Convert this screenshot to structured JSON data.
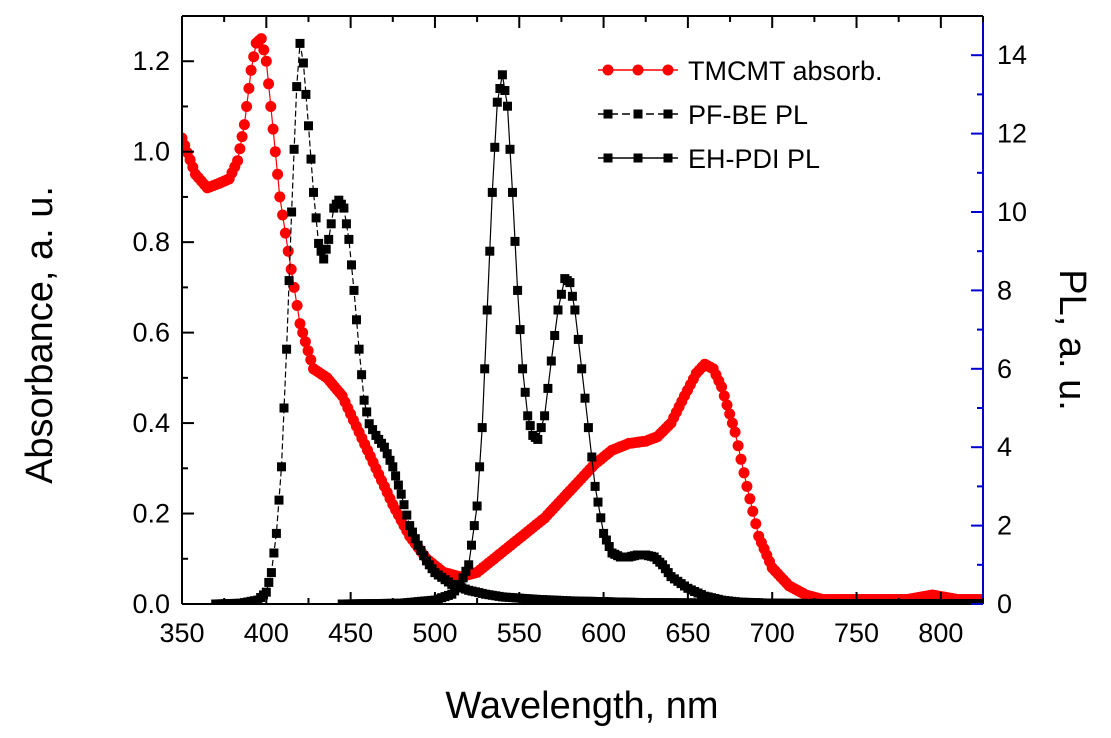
{
  "chart_data": {
    "type": "scatter",
    "xlabel": "Wavelength, nm",
    "ylabel": "Absorbance, a. u.",
    "y2label": "PL, a. u.",
    "xlim": [
      350,
      825
    ],
    "ylim": [
      0,
      1.3
    ],
    "y2lim": [
      0,
      15
    ],
    "x_ticks": [
      "350",
      "400",
      "450",
      "500",
      "550",
      "600",
      "650",
      "700",
      "750",
      "800"
    ],
    "y_ticks": [
      "0.0",
      "0.2",
      "0.4",
      "0.6",
      "0.8",
      "1.0",
      "1.2"
    ],
    "y2_ticks": [
      "0",
      "2",
      "4",
      "6",
      "8",
      "10",
      "12",
      "14"
    ],
    "grid": false,
    "legend_position": "top-right",
    "colors": {
      "absorb": "#ff0000",
      "pl": "#000000",
      "right_axis": "#0000cc"
    },
    "series": [
      {
        "name": "TMCMT absorb.",
        "axis": "left",
        "marker": "circle",
        "line": "solid",
        "x": [
          350,
          358,
          365,
          372,
          378,
          383,
          387,
          391,
          394,
          397,
          400,
          404,
          408,
          413,
          420,
          428,
          436,
          445,
          455,
          465,
          475,
          485,
          495,
          505,
          515,
          525,
          535,
          545,
          555,
          565,
          575,
          585,
          595,
          605,
          615,
          625,
          632,
          640,
          648,
          655,
          660,
          665,
          670,
          678,
          685,
          692,
          700,
          710,
          720,
          730,
          740,
          760,
          780,
          795,
          810,
          825
        ],
        "y": [
          1.03,
          0.95,
          0.92,
          0.93,
          0.94,
          0.98,
          1.06,
          1.18,
          1.24,
          1.25,
          1.2,
          1.05,
          0.9,
          0.78,
          0.62,
          0.52,
          0.5,
          0.46,
          0.38,
          0.3,
          0.22,
          0.15,
          0.1,
          0.07,
          0.06,
          0.07,
          0.1,
          0.13,
          0.16,
          0.19,
          0.23,
          0.27,
          0.31,
          0.34,
          0.355,
          0.36,
          0.37,
          0.4,
          0.46,
          0.51,
          0.53,
          0.52,
          0.48,
          0.38,
          0.26,
          0.15,
          0.08,
          0.04,
          0.02,
          0.01,
          0.01,
          0.01,
          0.01,
          0.02,
          0.01,
          0.01
        ]
      },
      {
        "name": "PF-BE PL",
        "axis": "right",
        "marker": "square",
        "line": "dashed",
        "x": [
          370,
          385,
          395,
          400,
          403,
          406,
          409,
          412,
          415,
          418,
          420,
          422,
          425,
          428,
          431,
          434,
          437,
          440,
          443,
          446,
          449,
          452,
          455,
          458,
          461,
          465,
          470,
          475,
          480,
          485,
          490,
          495,
          500,
          510,
          520,
          530,
          540,
          560,
          580,
          600,
          620,
          650,
          700,
          750,
          800,
          825
        ],
        "y": [
          0,
          0.02,
          0.1,
          0.3,
          0.8,
          1.8,
          3.5,
          6.5,
          10,
          13.2,
          14.3,
          13.8,
          12.2,
          10.5,
          9.2,
          8.8,
          9.3,
          10.1,
          10.3,
          10.1,
          9.3,
          8,
          6.5,
          5.2,
          4.6,
          4.3,
          4,
          3.5,
          2.8,
          2,
          1.5,
          1.1,
          0.8,
          0.5,
          0.35,
          0.25,
          0.18,
          0.12,
          0.08,
          0.06,
          0.04,
          0.03,
          0.02,
          0.01,
          0.01,
          0.01
        ]
      },
      {
        "name": "EH-PDI PL",
        "axis": "right",
        "marker": "square",
        "line": "solid",
        "x": [
          445,
          480,
          500,
          510,
          515,
          520,
          525,
          528,
          531,
          534,
          537,
          540,
          543,
          546,
          549,
          552,
          555,
          558,
          561,
          565,
          569,
          573,
          577,
          580,
          583,
          587,
          591,
          595,
          600,
          605,
          610,
          615,
          620,
          625,
          630,
          635,
          640,
          650,
          660,
          670,
          680,
          700,
          720,
          750,
          780,
          800,
          825
        ],
        "y": [
          0,
          0.02,
          0.1,
          0.25,
          0.5,
          1,
          2.5,
          4.5,
          7.5,
          10.5,
          12.8,
          13.5,
          12.7,
          10.5,
          8,
          6,
          4.8,
          4.3,
          4.2,
          4.8,
          6.2,
          7.5,
          8.3,
          8.2,
          7.5,
          6,
          4.5,
          3,
          1.8,
          1.3,
          1.2,
          1.2,
          1.25,
          1.25,
          1.2,
          1,
          0.7,
          0.4,
          0.2,
          0.1,
          0.05,
          0.02,
          0.01,
          0.01,
          0,
          0,
          0
        ]
      }
    ]
  }
}
